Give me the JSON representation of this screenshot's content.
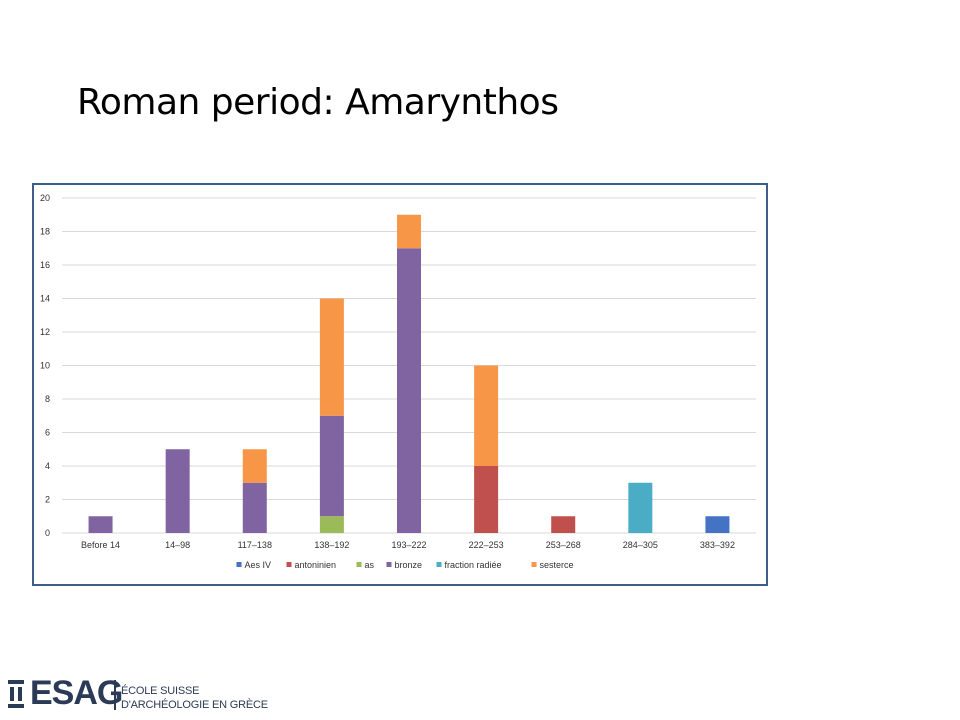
{
  "slide": {
    "title": "Roman period: Amarynthos"
  },
  "logo": {
    "name": "ESAG",
    "line1": "ÉCOLE SUISSE",
    "line2": "D'ARCHÉOLOGIE EN GRÈCE"
  },
  "chart_data": {
    "type": "bar",
    "stacked": true,
    "categories": [
      "Before 14",
      "14–98",
      "117–138",
      "138–192",
      "193–222",
      "222–253",
      "253–268",
      "284–305",
      "383–392"
    ],
    "series": [
      {
        "name": "Aes IV",
        "color": "#4472c4",
        "values": [
          0,
          0,
          0,
          0,
          0,
          0,
          0,
          0,
          1
        ]
      },
      {
        "name": "antoninien",
        "color": "#c0504d",
        "values": [
          0,
          0,
          0,
          0,
          0,
          4,
          1,
          0,
          0
        ]
      },
      {
        "name": "as",
        "color": "#9bbb59",
        "values": [
          0,
          0,
          0,
          1,
          0,
          0,
          0,
          0,
          0
        ]
      },
      {
        "name": "bronze",
        "color": "#8064a2",
        "values": [
          1,
          5,
          3,
          6,
          17,
          0,
          0,
          0,
          0
        ]
      },
      {
        "name": "fraction radiée",
        "color": "#4bacc6",
        "values": [
          0,
          0,
          0,
          0,
          0,
          0,
          0,
          3,
          0
        ]
      },
      {
        "name": "sesterce",
        "color": "#f79646",
        "values": [
          0,
          0,
          2,
          7,
          2,
          6,
          0,
          0,
          0
        ]
      }
    ],
    "ylim": [
      0,
      20
    ],
    "yticks": [
      0,
      2,
      4,
      6,
      8,
      10,
      12,
      14,
      16,
      18,
      20
    ],
    "grid": true,
    "legend": "bottom"
  }
}
